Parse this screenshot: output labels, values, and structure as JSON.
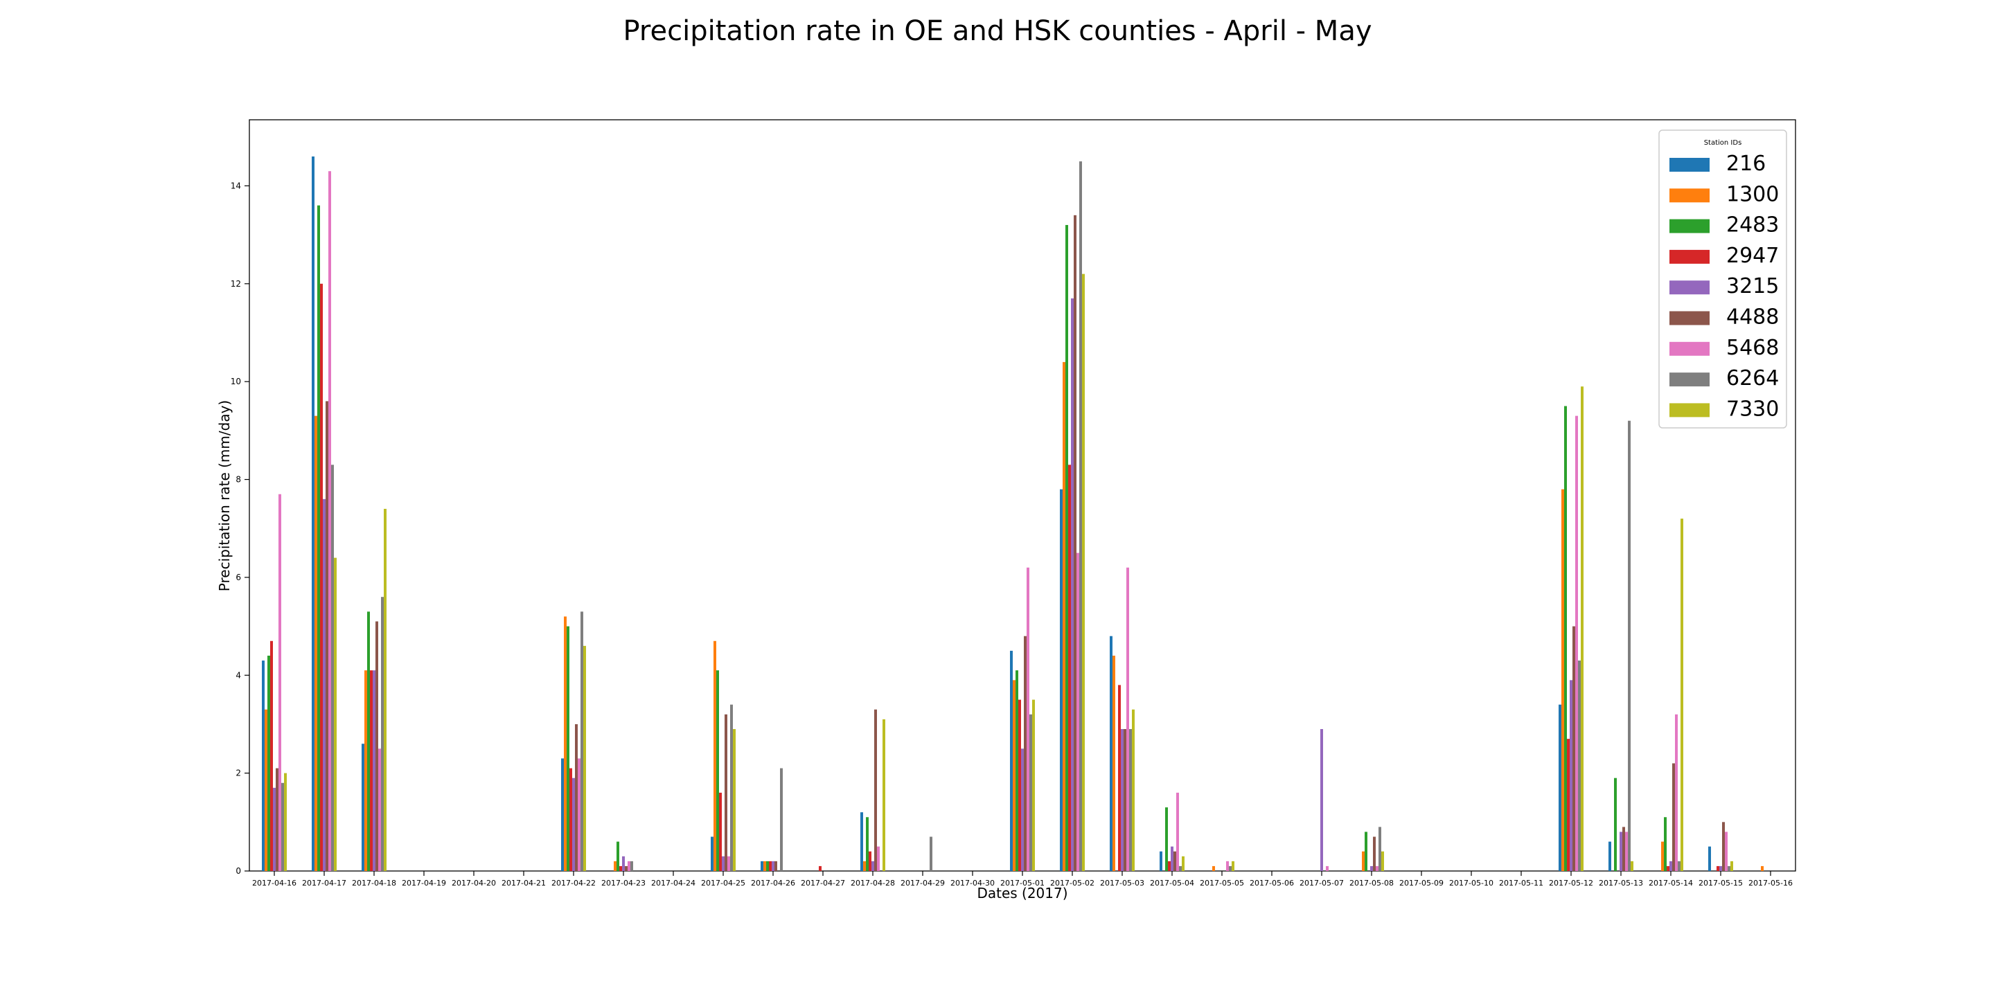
{
  "chart_data": {
    "type": "bar",
    "title": "Precipitation rate in OE and HSK counties - April - May",
    "xlabel": "Dates (2017)",
    "ylabel": "Precipitation rate (mm/day)",
    "ylim": [
      0,
      15.35
    ],
    "yticks": [
      0,
      2,
      4,
      6,
      8,
      10,
      12,
      14
    ],
    "grid": false,
    "legend": {
      "title": "Station IDs",
      "placement": "top-right"
    },
    "categories": [
      "2017-04-16",
      "2017-04-17",
      "2017-04-18",
      "2017-04-19",
      "2017-04-20",
      "2017-04-21",
      "2017-04-22",
      "2017-04-23",
      "2017-04-24",
      "2017-04-25",
      "2017-04-26",
      "2017-04-27",
      "2017-04-28",
      "2017-04-29",
      "2017-04-30",
      "2017-05-01",
      "2017-05-02",
      "2017-05-03",
      "2017-05-04",
      "2017-05-05",
      "2017-05-06",
      "2017-05-07",
      "2017-05-08",
      "2017-05-09",
      "2017-05-10",
      "2017-05-11",
      "2017-05-12",
      "2017-05-13",
      "2017-05-14",
      "2017-05-15",
      "2017-05-16"
    ],
    "series": [
      {
        "name": "216",
        "color": "#1f77b4",
        "values": [
          4.3,
          14.6,
          2.6,
          0,
          0,
          0,
          2.3,
          0,
          0,
          0.7,
          0.2,
          0,
          1.2,
          0,
          0,
          4.5,
          7.8,
          4.8,
          0.4,
          0,
          0,
          0,
          0,
          0,
          0,
          0,
          3.4,
          0.6,
          0,
          0.5,
          0
        ]
      },
      {
        "name": "1300",
        "color": "#ff7f0e",
        "values": [
          3.3,
          9.3,
          4.1,
          0,
          0,
          0,
          5.2,
          0.2,
          0,
          4.7,
          0.2,
          0,
          0.2,
          0,
          0,
          3.9,
          10.4,
          4.4,
          0,
          0.1,
          0,
          0,
          0.4,
          0,
          0,
          0,
          7.8,
          0,
          0.6,
          0,
          0.1
        ]
      },
      {
        "name": "2483",
        "color": "#2ca02c",
        "values": [
          4.4,
          13.6,
          5.3,
          0,
          0,
          0,
          5.0,
          0.6,
          0,
          4.1,
          0.2,
          0,
          1.1,
          0,
          0,
          4.1,
          13.2,
          0,
          1.3,
          0,
          0,
          0,
          0.8,
          0,
          0,
          0,
          9.5,
          1.9,
          1.1,
          0,
          0
        ]
      },
      {
        "name": "2947",
        "color": "#d62728",
        "values": [
          4.7,
          12.0,
          4.1,
          0,
          0,
          0,
          2.1,
          0.1,
          0,
          1.6,
          0.2,
          0.1,
          0.4,
          0,
          0,
          3.5,
          8.3,
          3.8,
          0.2,
          0,
          0,
          0,
          0,
          0,
          0,
          0,
          2.7,
          0,
          0.1,
          0.1,
          0
        ]
      },
      {
        "name": "3215",
        "color": "#9467bd",
        "values": [
          1.7,
          7.6,
          4.1,
          0,
          0,
          0,
          1.9,
          0.3,
          0,
          0.3,
          0.2,
          0,
          0.2,
          0,
          0,
          2.5,
          11.7,
          2.9,
          0.5,
          0,
          0,
          2.9,
          0.1,
          0,
          0,
          0,
          3.9,
          0.8,
          0.2,
          0.1,
          0
        ]
      },
      {
        "name": "4488",
        "color": "#8c564b",
        "values": [
          2.1,
          9.6,
          5.1,
          0,
          0,
          0,
          3.0,
          0.1,
          0,
          3.2,
          0.2,
          0,
          3.3,
          0,
          0,
          4.8,
          13.4,
          2.9,
          0.4,
          0,
          0,
          0,
          0.7,
          0,
          0,
          0,
          5.0,
          0.9,
          2.2,
          1.0,
          0
        ]
      },
      {
        "name": "5468",
        "color": "#e377c2",
        "values": [
          7.7,
          14.3,
          2.5,
          0,
          0,
          0,
          2.3,
          0.2,
          0,
          0.3,
          0,
          0,
          0.5,
          0,
          0,
          6.2,
          6.5,
          6.2,
          1.6,
          0.2,
          0,
          0.1,
          0.1,
          0,
          0,
          0,
          9.3,
          0.8,
          3.2,
          0.8,
          0
        ]
      },
      {
        "name": "6264",
        "color": "#7f7f7f",
        "values": [
          1.8,
          8.3,
          5.6,
          0,
          0,
          0,
          5.3,
          0.2,
          0,
          3.4,
          2.1,
          0,
          0,
          0.7,
          0,
          3.2,
          14.5,
          2.9,
          0.1,
          0.1,
          0,
          0,
          0.9,
          0,
          0,
          0,
          4.3,
          9.2,
          0.2,
          0.1,
          0
        ]
      },
      {
        "name": "7330",
        "color": "#bcbd22",
        "values": [
          2.0,
          6.4,
          7.4,
          0,
          0,
          0,
          4.6,
          0,
          0,
          2.9,
          0,
          0,
          3.1,
          0,
          0,
          3.5,
          12.2,
          3.3,
          0.3,
          0.2,
          0,
          0,
          0.4,
          0,
          0,
          0,
          9.9,
          0.2,
          7.2,
          0.2,
          0
        ]
      }
    ]
  }
}
